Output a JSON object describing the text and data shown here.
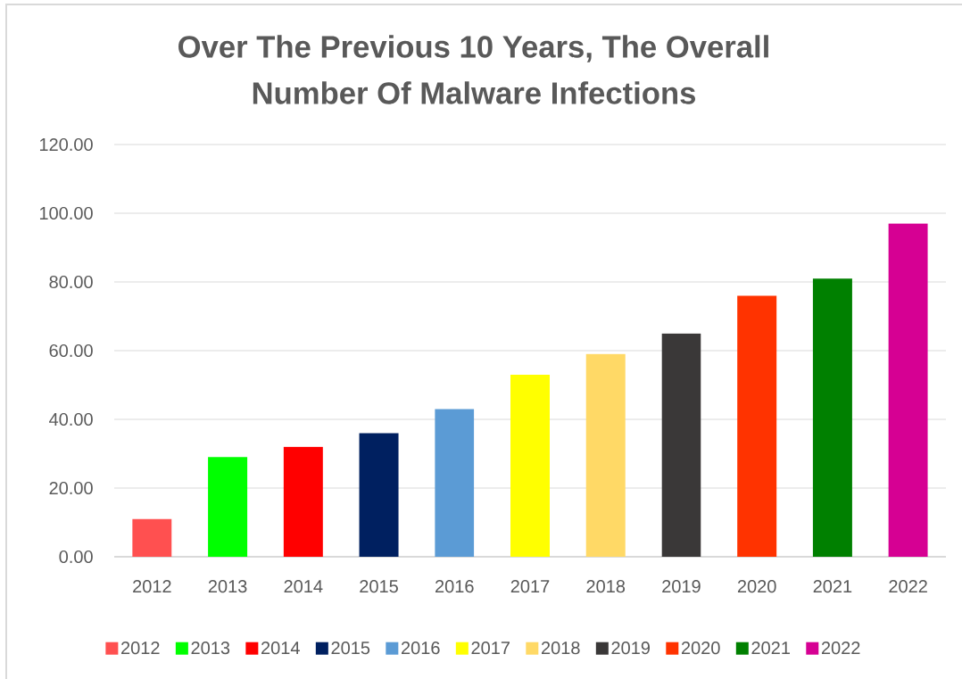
{
  "chart_data": {
    "type": "bar",
    "title": "Over The Previous 10 Years, The Overall Number Of Malware Infections",
    "categories": [
      "2012",
      "2013",
      "2014",
      "2015",
      "2016",
      "2017",
      "2018",
      "2019",
      "2020",
      "2021",
      "2022"
    ],
    "series": [
      {
        "name": "2012",
        "color": "#ff5050",
        "values": [
          11,
          null,
          null,
          null,
          null,
          null,
          null,
          null,
          null,
          null,
          null
        ]
      },
      {
        "name": "2013",
        "color": "#00ff00",
        "values": [
          null,
          29,
          null,
          null,
          null,
          null,
          null,
          null,
          null,
          null,
          null
        ]
      },
      {
        "name": "2014",
        "color": "#ff0000",
        "values": [
          null,
          null,
          32,
          null,
          null,
          null,
          null,
          null,
          null,
          null,
          null
        ]
      },
      {
        "name": "2015",
        "color": "#002060",
        "values": [
          null,
          null,
          null,
          36,
          null,
          null,
          null,
          null,
          null,
          null,
          null
        ]
      },
      {
        "name": "2016",
        "color": "#5b9bd5",
        "values": [
          null,
          null,
          null,
          null,
          43,
          null,
          null,
          null,
          null,
          null,
          null
        ]
      },
      {
        "name": "2017",
        "color": "#ffff00",
        "values": [
          null,
          null,
          null,
          null,
          null,
          53,
          null,
          null,
          null,
          null,
          null
        ]
      },
      {
        "name": "2018",
        "color": "#ffd966",
        "values": [
          null,
          null,
          null,
          null,
          null,
          null,
          59,
          null,
          null,
          null,
          null
        ]
      },
      {
        "name": "2019",
        "color": "#3a3838",
        "values": [
          null,
          null,
          null,
          null,
          null,
          null,
          null,
          65,
          null,
          null,
          null
        ]
      },
      {
        "name": "2020",
        "color": "#ff3300",
        "values": [
          null,
          null,
          null,
          null,
          null,
          null,
          null,
          null,
          76,
          null,
          null
        ]
      },
      {
        "name": "2021",
        "color": "#008000",
        "values": [
          null,
          null,
          null,
          null,
          null,
          null,
          null,
          null,
          null,
          81,
          null
        ]
      },
      {
        "name": "2022",
        "color": "#d60093",
        "values": [
          null,
          null,
          null,
          null,
          null,
          null,
          null,
          null,
          null,
          null,
          97
        ]
      }
    ],
    "stacked": true,
    "ylim": [
      0,
      120
    ],
    "yticks": [
      {
        "value": 0,
        "label": "0.00"
      },
      {
        "value": 20,
        "label": "20.00"
      },
      {
        "value": 40,
        "label": "40.00"
      },
      {
        "value": 60,
        "label": "60.00"
      },
      {
        "value": 80,
        "label": "80.00"
      },
      {
        "value": 100,
        "label": "100.00"
      },
      {
        "value": 120,
        "label": "120.00"
      }
    ],
    "grid": "y",
    "legend": "bottom"
  }
}
